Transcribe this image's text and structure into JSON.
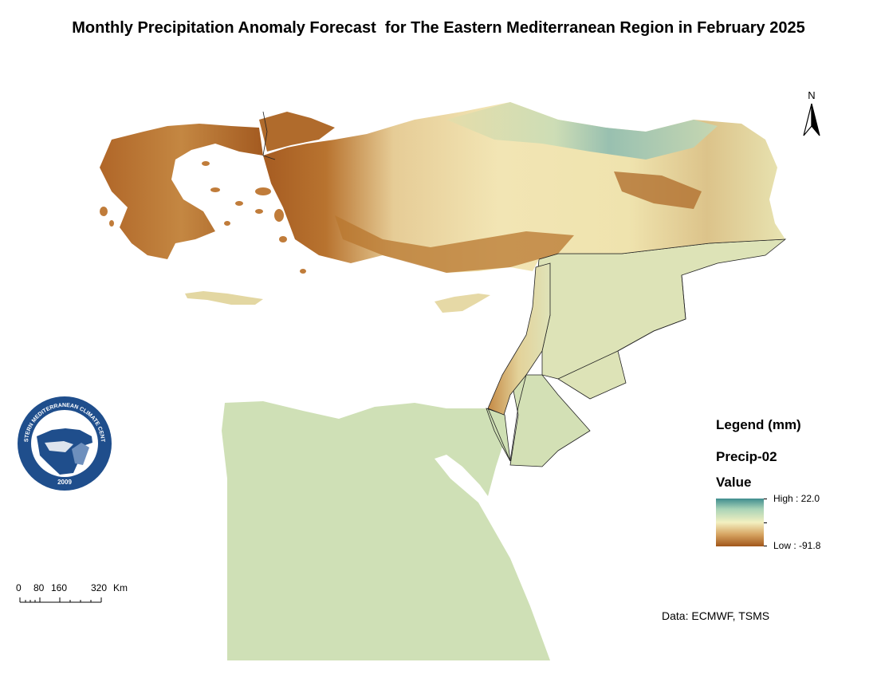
{
  "title": "Monthly Precipitation Anomaly Forecast  for The Eastern Mediterranean Region in February 2025",
  "north_arrow": {
    "label": "N"
  },
  "logo": {
    "text_top": "EASTERN MEDITERRANEAN CLIMATE CENTRE",
    "year": "2009",
    "description": "circular emblem of the centre"
  },
  "legend": {
    "title": "Legend (mm)",
    "field": "Precip-02",
    "value_label": "Value",
    "high_label": "High : 22.0",
    "low_label": "Low : -91.8",
    "high_value": 22.0,
    "low_value": -91.8,
    "colors": [
      "#3f8d8f",
      "#a9d3b7",
      "#f3f0c0",
      "#d7a562",
      "#a1561a"
    ]
  },
  "scale_bar": {
    "labels": [
      "0",
      "80",
      "160",
      "320"
    ],
    "unit": "Km"
  },
  "credit": "Data: ECMWF, TSMS",
  "regions": [
    {
      "name": "greece",
      "anomaly": "strong negative"
    },
    {
      "name": "turkey-west-south",
      "anomaly": "strong negative"
    },
    {
      "name": "turkey-north-east",
      "anomaly": "near normal to positive"
    },
    {
      "name": "levant-coast",
      "anomaly": "negative"
    },
    {
      "name": "cyprus",
      "anomaly": "slightly negative"
    },
    {
      "name": "crete",
      "anomaly": "slightly negative"
    },
    {
      "name": "syria",
      "anomaly": "near normal"
    },
    {
      "name": "jordan",
      "anomaly": "near normal"
    },
    {
      "name": "egypt",
      "anomaly": "near normal"
    }
  ]
}
